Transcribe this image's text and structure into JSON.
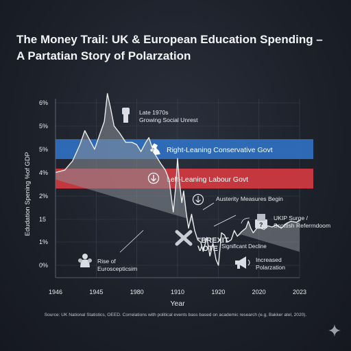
{
  "title": "The Money Trail: UK & European Education Spending – A Partatian Story of Polarzation",
  "source": "Source: UK National Statistics, OEED. Correlations with political events bass based on academic research (e.g, Bakker atel, 2020).",
  "colors": {
    "background": "#1c2029",
    "conservative_band": "#2f6fc0",
    "labour_band": "#d2393f",
    "line": "#ededed",
    "area": "#8a8f98",
    "text": "#e9ebef"
  },
  "chart_data": {
    "type": "line",
    "title": "The Money Trail: UK & European Education Spending – A Partatian Story of Polarzation",
    "xlabel": "Year",
    "ylabel": "Edudation Spening %of GDP",
    "x_tick_labels": [
      "1946",
      "1945",
      "1980",
      "1910",
      "1920",
      "2020",
      "2023"
    ],
    "y_tick_labels": [
      "6%",
      "5%",
      "5%",
      "4%",
      "2%",
      "15",
      "1%",
      "0%"
    ],
    "grid": true,
    "note": "x and y values below are positions along the printed tick sequence (tick index), since the printed tick labels are not monotonic",
    "series": [
      {
        "values": [
          [
            0.0,
            4.0
          ],
          [
            0.15,
            4.1
          ],
          [
            0.28,
            4.5
          ],
          [
            0.4,
            5.2
          ],
          [
            0.48,
            5.8
          ],
          [
            0.56,
            5.4
          ],
          [
            0.64,
            5.0
          ],
          [
            0.72,
            5.6
          ],
          [
            0.8,
            6.2
          ],
          [
            0.85,
            7.4
          ],
          [
            0.9,
            6.8
          ],
          [
            0.96,
            6.0
          ],
          [
            1.05,
            5.7
          ],
          [
            1.15,
            5.3
          ],
          [
            1.25,
            5.3
          ],
          [
            1.33,
            5.2
          ],
          [
            1.4,
            4.9
          ],
          [
            1.48,
            5.3
          ],
          [
            1.53,
            5.5
          ],
          [
            1.58,
            5.1
          ],
          [
            1.65,
            4.7
          ],
          [
            1.72,
            4.4
          ],
          [
            1.8,
            4.1
          ],
          [
            1.86,
            3.7
          ],
          [
            1.9,
            2.9
          ],
          [
            1.93,
            2.3
          ],
          [
            1.97,
            3.4
          ],
          [
            2.0,
            4.6
          ],
          [
            2.03,
            3.6
          ],
          [
            2.07,
            2.7
          ],
          [
            2.1,
            3.2
          ],
          [
            2.14,
            2.3
          ],
          [
            2.18,
            1.6
          ],
          [
            2.23,
            2.2
          ],
          [
            2.28,
            1.5
          ],
          [
            2.33,
            1.1
          ],
          [
            2.38,
            1.0
          ],
          [
            2.42,
            0.6
          ],
          [
            2.48,
            1.2
          ],
          [
            2.53,
            0.4
          ],
          [
            2.58,
            0.95
          ],
          [
            2.63,
            0.25
          ],
          [
            2.67,
            0.0
          ],
          [
            2.72,
            1.4
          ],
          [
            2.77,
            1.3
          ],
          [
            2.82,
            1.0
          ],
          [
            2.88,
            1.1
          ],
          [
            2.93,
            1.5
          ],
          [
            2.98,
            1.25
          ],
          [
            3.05,
            1.45
          ],
          [
            3.12,
            1.6
          ],
          [
            3.16,
            1.9
          ],
          [
            3.2,
            1.6
          ],
          [
            3.24,
            1.4
          ],
          [
            3.3,
            1.6
          ],
          [
            3.36,
            1.6
          ],
          [
            3.42,
            1.55
          ],
          [
            3.48,
            1.7
          ],
          [
            3.55,
            1.65
          ],
          [
            3.62,
            1.75
          ],
          [
            3.7,
            1.6
          ],
          [
            3.78,
            1.8
          ],
          [
            3.86,
            1.9
          ],
          [
            3.95,
            1.85
          ],
          [
            4.0,
            1.95
          ]
        ]
      }
    ],
    "bands": [
      {
        "label": "Right-Leaning Conservative Govt",
        "icon": "uk-map-icon"
      },
      {
        "label": "Left-Leaning Labour Govt",
        "icon": "down-arrow-circle-icon"
      }
    ],
    "annotations": [
      {
        "lines": [
          "Late 1970s",
          "Growing Social Unrest"
        ],
        "icon": "raised-fist-icon"
      },
      {
        "lines": [
          "Austerity Measures Begin"
        ],
        "icon": "down-arrow-circle-icon"
      },
      {
        "lines": [
          "UKIP Surge /",
          "Scottish Referrndoom"
        ],
        "icon": "ballot-box-icon"
      },
      {
        "lines": [
          "Rise of",
          "Euroscepticsim"
        ],
        "icon": "crowd-icon"
      },
      {
        "lines": [
          "\"BREXIT",
          "VOTE"
        ],
        "icon": "broken-chain-icon"
      },
      {
        "lines": [
          "Significant Decline"
        ]
      },
      {
        "lines": [
          "Increased",
          "Polarzation"
        ],
        "icon": "megaphone-icon"
      }
    ]
  }
}
